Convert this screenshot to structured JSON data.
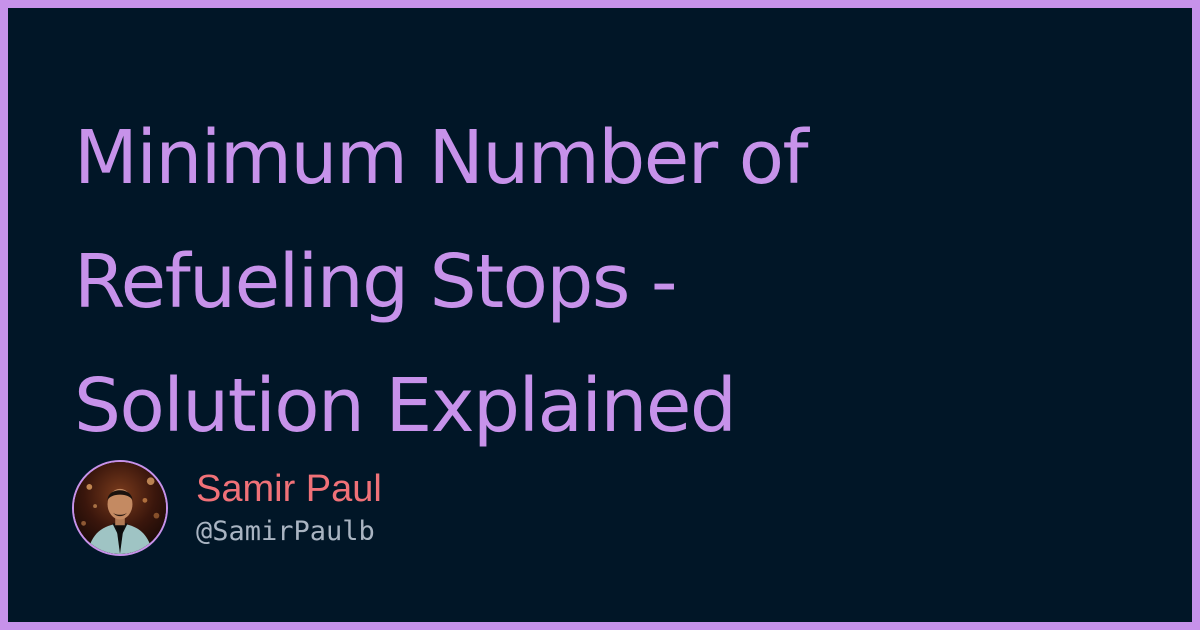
{
  "title": {
    "lines": [
      "Minimum Number of",
      "Refueling Stops -",
      "Solution Explained"
    ]
  },
  "author": {
    "name": "Samir Paul",
    "handle": "@SamirPaulb"
  },
  "colors": {
    "border": "#c792ea",
    "background": "#011627",
    "title": "#c792ea",
    "author_name": "#f07178",
    "author_handle": "#a9b4c2"
  }
}
